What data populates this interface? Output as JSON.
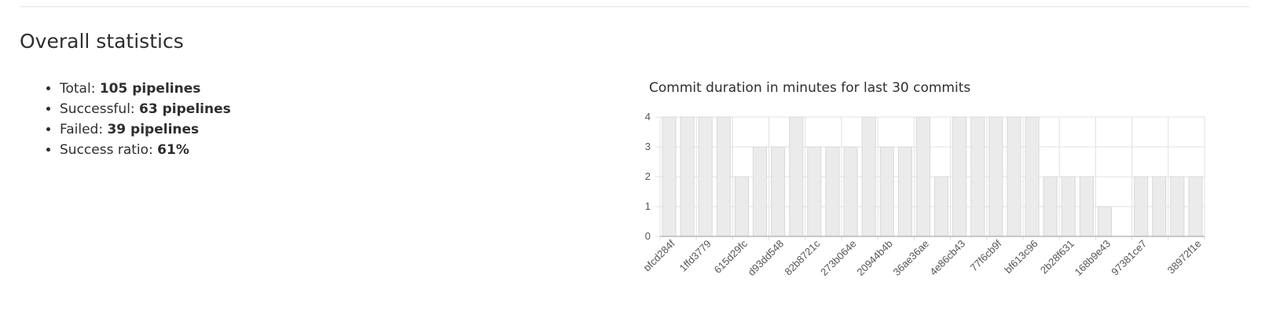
{
  "section": {
    "title": "Overall statistics"
  },
  "stats": [
    {
      "label": "Total: ",
      "value": "105 pipelines"
    },
    {
      "label": "Successful: ",
      "value": "63 pipelines"
    },
    {
      "label": "Failed: ",
      "value": "39 pipelines"
    },
    {
      "label": "Success ratio: ",
      "value": "61%"
    }
  ],
  "chart_data": {
    "type": "bar",
    "title": "Commit duration in minutes for last 30 commits",
    "xlabel": "",
    "ylabel": "",
    "ylim": [
      0,
      4
    ],
    "yticks": [
      0,
      1,
      2,
      3,
      4
    ],
    "grid": true,
    "colors": {
      "bar_fill": "#ebebeb",
      "bar_stroke": "#d8d8d8",
      "grid": "#e0e0e0",
      "axis": "#999999",
      "tick_text": "#555555"
    },
    "categories": [
      "bfcd284f",
      "",
      "1ffd3779",
      "",
      "615d29fc",
      "",
      "d93dd548",
      "",
      "82b8721c",
      "",
      "273b064e",
      "",
      "20944b4b",
      "",
      "36ae36ae",
      "",
      "4e86cb43",
      "",
      "77f6cb9f",
      "",
      "bf613c96",
      "",
      "2b28f631",
      "",
      "168b9e43",
      "",
      "97381ce7",
      "",
      "",
      "38972f1e"
    ],
    "values": [
      4,
      4,
      4,
      4,
      2,
      3,
      3,
      4,
      3,
      3,
      3,
      4,
      3,
      3,
      4,
      2,
      4,
      4,
      4,
      4,
      4,
      2,
      2,
      2,
      1,
      0,
      2,
      2,
      2,
      2
    ]
  }
}
